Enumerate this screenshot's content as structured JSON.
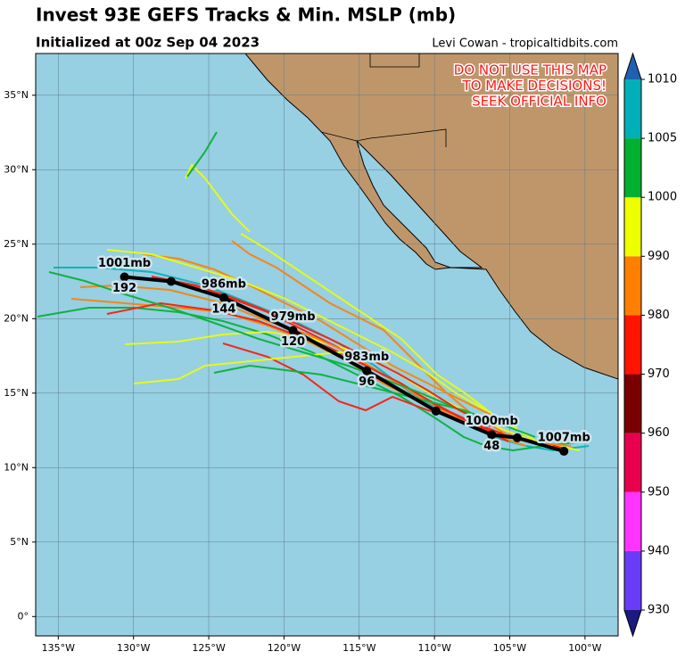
{
  "title": "Invest 93E GEFS Tracks & Min. MSLP (mb)",
  "subtitle": "Initialized at 00z Sep 04 2023",
  "credit": "Levi Cowan - tropicaltidbits.com",
  "warning": [
    "DO NOT USE THIS MAP",
    "TO MAKE DECISIONS!",
    "SEEK OFFICIAL INFO"
  ],
  "map": {
    "xlim": [
      -136.5,
      -97.8
    ],
    "ylim": [
      -1.3,
      37.8
    ],
    "xticks": [
      {
        "value": -135,
        "label": "135°W"
      },
      {
        "value": -130,
        "label": "130°W"
      },
      {
        "value": -125,
        "label": "125°W"
      },
      {
        "value": -120,
        "label": "120°W"
      },
      {
        "value": -115,
        "label": "115°W"
      },
      {
        "value": -110,
        "label": "110°W"
      },
      {
        "value": -105,
        "label": "105°W"
      },
      {
        "value": -100,
        "label": "100°W"
      }
    ],
    "yticks": [
      {
        "value": 0,
        "label": "0°"
      },
      {
        "value": 5,
        "label": "5°N"
      },
      {
        "value": 10,
        "label": "10°N"
      },
      {
        "value": 15,
        "label": "15°N"
      },
      {
        "value": 20,
        "label": "20°N"
      },
      {
        "value": 25,
        "label": "25°N"
      },
      {
        "value": 30,
        "label": "30°N"
      },
      {
        "value": 35,
        "label": "35°N"
      }
    ],
    "mean_track": {
      "color": "#000000",
      "points": [
        {
          "lon": -101.4,
          "lat": 11.1,
          "pressure": "1007mb"
        },
        {
          "lon": -104.5,
          "lat": 12.0
        },
        {
          "lon": -106.2,
          "lat": 12.2,
          "pressure": "1000mb",
          "hour": 48
        },
        {
          "lon": -109.9,
          "lat": 13.8
        },
        {
          "lon": -114.5,
          "lat": 16.5,
          "pressure": "983mb",
          "hour": 96
        },
        {
          "lon": -119.4,
          "lat": 19.2,
          "pressure": "979mb",
          "hour": 120
        },
        {
          "lon": -124.0,
          "lat": 21.4,
          "pressure": "986mb",
          "hour": 144
        },
        {
          "lon": -127.5,
          "lat": 22.5
        },
        {
          "lon": -130.6,
          "lat": 22.8,
          "pressure": "1001mb",
          "hour": 192
        }
      ]
    }
  },
  "colorbar": {
    "ticks": [
      930,
      940,
      950,
      960,
      970,
      980,
      990,
      1000,
      1005,
      1010
    ],
    "colors": [
      "#6a3cf7",
      "#ff33ff",
      "#e8004f",
      "#7a0000",
      "#ff1400",
      "#ff7f00",
      "#eeff00",
      "#00b030",
      "#00b0b8"
    ],
    "under_color": "#1a1a80",
    "over_color": "#2060b0"
  }
}
